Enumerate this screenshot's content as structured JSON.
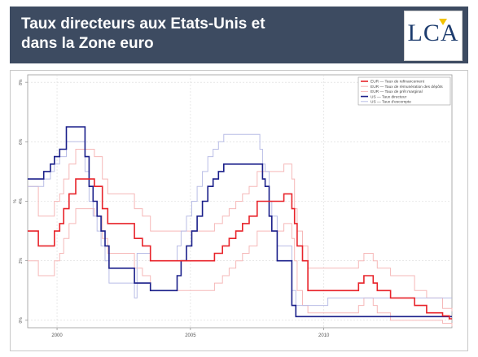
{
  "header": {
    "title_line1": "Taux directeurs aux Etats-Unis et",
    "title_line2": "dans la Zone euro",
    "logo_text": "LCA"
  },
  "colors": {
    "header_bg": "#3d4b61",
    "eur_refi": "#e8232a",
    "eur_depot": "#f6b8b8",
    "eur_marginal": "#f6b8b8",
    "us_directeur": "#1a1f8a",
    "us_escompte": "#b9bde6"
  },
  "chart_data": {
    "type": "line",
    "title": "",
    "xlabel": "",
    "ylabel": "%",
    "xlim": [
      1998.9,
      2014.8
    ],
    "ylim": [
      -0.25,
      8.25
    ],
    "x_ticks": [
      2000,
      2005,
      2010
    ],
    "x_tick_labels": [
      "2000",
      "2005",
      "2010"
    ],
    "y_ticks": [
      0,
      2,
      4,
      6,
      8
    ],
    "y_tick_labels": [
      "0%",
      "2%",
      "4%",
      "6%",
      "8%"
    ],
    "legend_position": "top-right",
    "series": [
      {
        "name": "EUR — Taux de refinancement",
        "color": "#e8232a",
        "width": 1.6,
        "x": [
          1998.9,
          1999.3,
          1999.9,
          2000.1,
          2000.25,
          2000.45,
          2000.7,
          2001.4,
          2001.7,
          2001.9,
          2002.9,
          2003.2,
          2003.5,
          2005.9,
          2006.2,
          2006.45,
          2006.7,
          2006.95,
          2007.2,
          2007.5,
          2008.5,
          2008.8,
          2008.9,
          2009.0,
          2009.2,
          2009.4,
          2011.3,
          2011.5,
          2011.85,
          2012.0,
          2012.5,
          2013.4,
          2013.85,
          2014.45,
          2014.7,
          2014.8
        ],
        "y": [
          3.0,
          2.5,
          3.0,
          3.25,
          3.75,
          4.25,
          4.75,
          4.5,
          3.75,
          3.25,
          2.75,
          2.5,
          2.0,
          2.25,
          2.5,
          2.75,
          3.0,
          3.25,
          3.5,
          4.0,
          4.25,
          3.75,
          3.25,
          2.5,
          2.0,
          1.0,
          1.25,
          1.5,
          1.25,
          1.0,
          0.75,
          0.5,
          0.25,
          0.15,
          0.05,
          0.05
        ]
      },
      {
        "name": "EUR — Taux de rémunération des dépôts",
        "color": "#f6b8b8",
        "width": 1,
        "x": [
          1998.9,
          1999.3,
          1999.9,
          2000.1,
          2000.25,
          2000.45,
          2000.7,
          2001.4,
          2001.7,
          2001.9,
          2002.9,
          2003.2,
          2003.5,
          2005.9,
          2006.2,
          2006.45,
          2006.7,
          2006.95,
          2007.2,
          2007.5,
          2008.5,
          2008.8,
          2008.9,
          2009.0,
          2009.2,
          2009.4,
          2011.3,
          2011.5,
          2011.85,
          2012.0,
          2012.5,
          2014.45,
          2014.8
        ],
        "y": [
          2.0,
          1.5,
          2.0,
          2.25,
          2.75,
          3.25,
          3.75,
          3.5,
          2.75,
          2.25,
          1.75,
          1.5,
          1.0,
          1.25,
          1.5,
          1.75,
          2.0,
          2.25,
          2.5,
          3.0,
          3.25,
          2.75,
          2.0,
          1.0,
          0.5,
          0.25,
          0.5,
          0.75,
          0.5,
          0.25,
          0.0,
          -0.1,
          -0.2
        ]
      },
      {
        "name": "EUR — Taux de  prêt marginal",
        "color": "#f6b8b8",
        "width": 1,
        "x": [
          1998.9,
          1999.3,
          1999.9,
          2000.1,
          2000.25,
          2000.45,
          2000.7,
          2001.4,
          2001.7,
          2001.9,
          2002.9,
          2003.2,
          2003.5,
          2005.9,
          2006.2,
          2006.45,
          2006.7,
          2006.95,
          2007.2,
          2007.5,
          2008.5,
          2008.8,
          2008.9,
          2009.0,
          2009.2,
          2009.4,
          2011.3,
          2011.5,
          2011.85,
          2012.0,
          2012.5,
          2013.4,
          2013.85,
          2014.45,
          2014.8
        ],
        "y": [
          4.5,
          3.5,
          4.0,
          4.25,
          4.75,
          5.25,
          5.75,
          5.5,
          4.75,
          4.25,
          3.75,
          3.5,
          3.0,
          3.25,
          3.5,
          3.75,
          4.0,
          4.25,
          4.5,
          5.0,
          5.25,
          4.75,
          3.75,
          3.0,
          2.5,
          1.75,
          2.0,
          2.25,
          2.0,
          1.75,
          1.5,
          1.0,
          0.75,
          0.4,
          0.3
        ]
      },
      {
        "name": "US — Taux directeur",
        "color": "#1a1f8a",
        "width": 1.6,
        "x": [
          1998.9,
          1999.5,
          1999.75,
          1999.9,
          2000.1,
          2000.35,
          2001.05,
          2001.2,
          2001.35,
          2001.5,
          2001.65,
          2001.8,
          2001.95,
          2002.9,
          2003.5,
          2004.5,
          2004.65,
          2004.85,
          2005.05,
          2005.25,
          2005.45,
          2005.65,
          2005.85,
          2006.05,
          2006.25,
          2006.45,
          2007.7,
          2007.8,
          2007.95,
          2008.05,
          2008.25,
          2008.8,
          2008.95,
          2014.8
        ],
        "y": [
          4.75,
          5.0,
          5.25,
          5.5,
          5.75,
          6.5,
          5.5,
          4.5,
          4.0,
          3.5,
          3.0,
          2.5,
          1.75,
          1.25,
          1.0,
          1.5,
          2.0,
          2.5,
          3.0,
          3.5,
          4.0,
          4.5,
          4.75,
          5.0,
          5.25,
          5.25,
          4.75,
          4.5,
          3.5,
          3.0,
          2.0,
          0.5,
          0.125,
          0.125
        ]
      },
      {
        "name": "US — Taux d'escompte",
        "color": "#b9bde6",
        "width": 1,
        "x": [
          1998.9,
          1999.5,
          1999.75,
          1999.9,
          2000.1,
          2000.35,
          2001.05,
          2001.2,
          2001.35,
          2001.5,
          2001.65,
          2001.8,
          2001.95,
          2002.9,
          2003.0,
          2003.5,
          2004.5,
          2004.65,
          2004.85,
          2005.05,
          2005.25,
          2005.45,
          2005.65,
          2005.85,
          2006.05,
          2006.25,
          2007.6,
          2007.7,
          2007.8,
          2007.95,
          2008.05,
          2008.25,
          2008.8,
          2008.95,
          2010.15,
          2014.8
        ],
        "y": [
          4.5,
          4.75,
          5.0,
          5.25,
          5.5,
          6.0,
          5.0,
          4.0,
          3.5,
          3.0,
          2.5,
          2.0,
          1.25,
          0.75,
          2.25,
          2.0,
          2.5,
          3.0,
          3.5,
          4.0,
          4.5,
          5.0,
          5.5,
          5.75,
          6.0,
          6.25,
          5.75,
          5.25,
          5.0,
          4.0,
          3.5,
          2.5,
          1.0,
          0.5,
          0.75,
          0.75
        ]
      }
    ]
  }
}
